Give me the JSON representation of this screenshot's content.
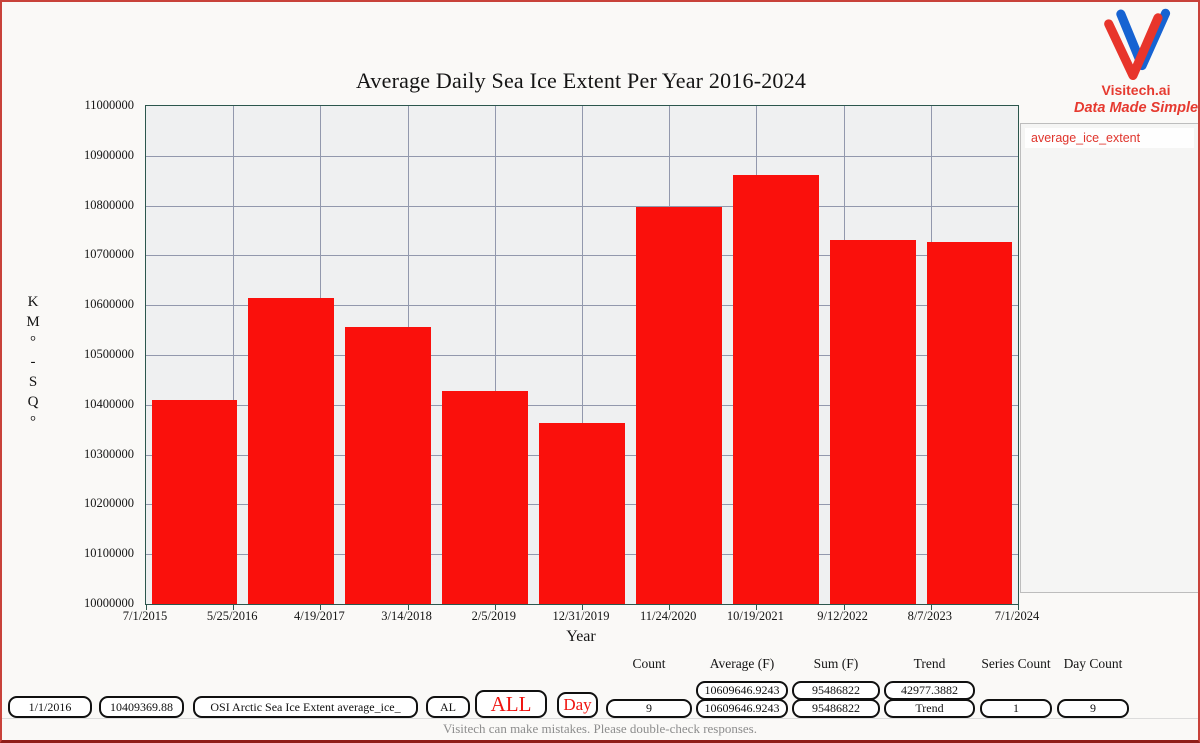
{
  "logo": {
    "brand": "Visitech.ai",
    "tagline": "Data Made Simple",
    "red": "#e8352b",
    "blue": "#1663d2"
  },
  "chart_data": {
    "type": "bar",
    "title": "Average Daily Sea Ice Extent Per Year 2016-2024",
    "xlabel": "Year",
    "ylabel": "KM°-SQ°",
    "ylabel_stacked": [
      "K",
      "M",
      "°",
      "-",
      "S",
      "Q",
      "°"
    ],
    "x_tick_labels": [
      "7/1/2015",
      "5/25/2016",
      "4/19/2017",
      "3/14/2018",
      "2/5/2019",
      "12/31/2019",
      "11/24/2020",
      "10/19/2021",
      "9/12/2022",
      "8/7/2023",
      "7/1/2024"
    ],
    "ylim": [
      10000000,
      11000000
    ],
    "y_tick_step": 100000,
    "grid": true,
    "bar_color": "#fa100c",
    "legend": {
      "position": "right",
      "entries": [
        "average_ice_extent"
      ]
    },
    "categories": [
      "2016",
      "2017",
      "2018",
      "2019",
      "2020",
      "2021",
      "2022",
      "2023",
      "2024"
    ],
    "series": [
      {
        "name": "average_ice_extent",
        "values": [
          10409370,
          10614000,
          10556000,
          10428000,
          10364452,
          10798000,
          10861000,
          10730000,
          10726000
        ]
      }
    ]
  },
  "stats": {
    "headers": [
      "Count",
      "Average (F)",
      "Sum (F)",
      "Trend",
      "Series Count",
      "Day Count"
    ],
    "row1": {
      "average": "10609646.9243",
      "sum": "95486822",
      "trend": "42977.3882"
    },
    "row2": {
      "count": "9",
      "average": "10609646.9243",
      "sum": "95486822",
      "trend": "Trend",
      "series_count": "1",
      "day_count": "9"
    }
  },
  "controls": {
    "date_value": "1/1/2016",
    "extent_value": "10409369.88",
    "dataset_value": "OSI Arctic Sea Ice Extent average_ice_",
    "region_value": "AL",
    "all_button": "ALL",
    "day_button": "Day"
  },
  "footer": "Visitech can make mistakes. Please double-check responses."
}
